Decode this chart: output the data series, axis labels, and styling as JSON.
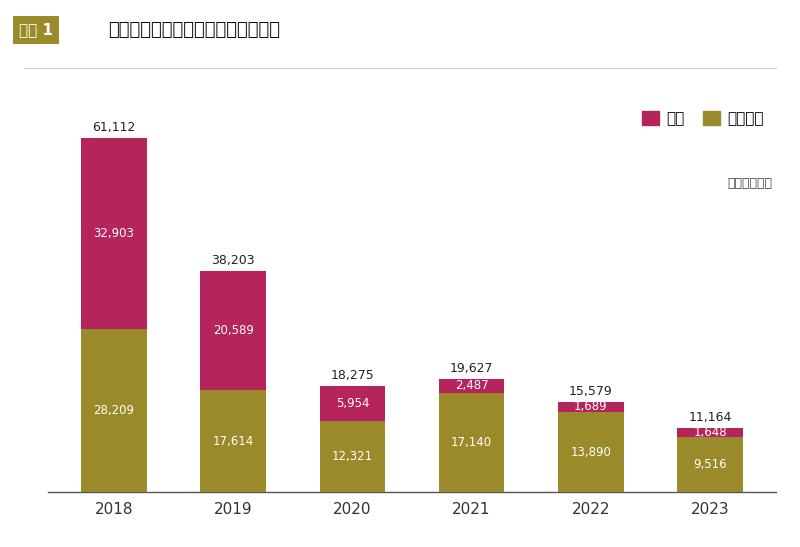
{
  "years": [
    "2018",
    "2019",
    "2020",
    "2021",
    "2022",
    "2023"
  ],
  "domestic": [
    28209,
    17614,
    12321,
    17140,
    13890,
    9516
  ],
  "export": [
    32903,
    20589,
    5954,
    2487,
    1689,
    1648
  ],
  "totals": [
    61112,
    38203,
    18275,
    19627,
    15579,
    11164
  ],
  "domestic_color": "#9B8A2A",
  "export_color": "#B5245A",
  "background_color": "#FFFFFF",
  "title_box_text": "図表 1",
  "title_box_bg": "#9B8A2A",
  "title_box_fg": "#FFFFFF",
  "title_main": "タイでのスズキの輸出・生産の推移",
  "legend_export": "輸出",
  "legend_domestic": "国内生産",
  "unit_text": "（単位：台）",
  "ylim_max": 68000,
  "bar_width": 0.55
}
